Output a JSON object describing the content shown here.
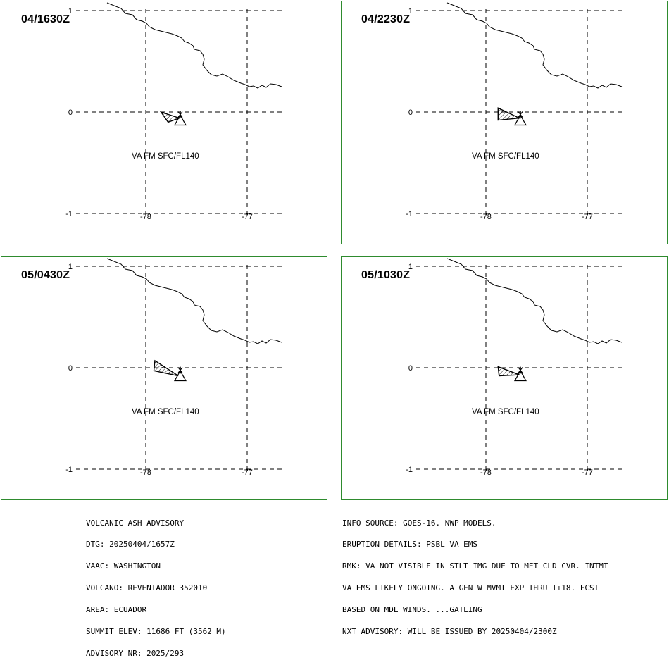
{
  "colors": {
    "frame": "#2e8b2e",
    "grid": "#000000",
    "ink": "#000000"
  },
  "map": {
    "lat_labels": [
      "1",
      "0",
      "-1"
    ],
    "lon_labels": [
      "-78",
      "-77"
    ],
    "coastline_name": "coastline",
    "volcano": {
      "name": "REVENTADOR",
      "lat": -0.08,
      "lon": -77.66,
      "symbol": "triangle-icon"
    }
  },
  "panels": [
    {
      "time": "04/1630Z",
      "label": "VA FM SFC/FL140",
      "ash_polygon": [
        [
          -77.85,
          0.0
        ],
        [
          -77.67,
          -0.06
        ],
        [
          -77.78,
          -0.1
        ]
      ]
    },
    {
      "time": "04/2230Z",
      "label": "VA FM SFC/FL140",
      "ash_polygon": [
        [
          -77.88,
          0.04
        ],
        [
          -77.67,
          -0.06
        ],
        [
          -77.88,
          -0.08
        ]
      ]
    },
    {
      "time": "05/0430Z",
      "label": "VA FM SFC/FL140",
      "ash_polygon": [
        [
          -77.91,
          0.07
        ],
        [
          -77.68,
          -0.08
        ],
        [
          -77.92,
          -0.03
        ]
      ]
    },
    {
      "time": "05/1030Z",
      "label": "VA FM SFC/FL140",
      "ash_polygon": [
        [
          -77.88,
          0.01
        ],
        [
          -77.67,
          -0.07
        ],
        [
          -77.87,
          -0.08
        ]
      ]
    }
  ],
  "advisory": {
    "left": [
      "VOLCANIC ASH ADVISORY",
      "DTG: 20250404/1657Z",
      "VAAC: WASHINGTON",
      "VOLCANO: REVENTADOR 352010",
      "AREA: ECUADOR",
      "SUMMIT ELEV: 11686 FT (3562 M)",
      "ADVISORY NR: 2025/293"
    ],
    "right": [
      "INFO SOURCE: GOES-16. NWP MODELS.",
      "ERUPTION DETAILS: PSBL VA EMS",
      "RMK: VA NOT VISIBLE IN STLT IMG DUE TO MET CLD CVR. INTMT",
      "VA EMS LIKELY ONGOING. A GEN W MVMT EXP THRU T+18. FCST",
      "BASED ON MDL WINDS. ...GATLING",
      "NXT ADVISORY: WILL BE ISSUED BY 20250404/2300Z"
    ]
  }
}
